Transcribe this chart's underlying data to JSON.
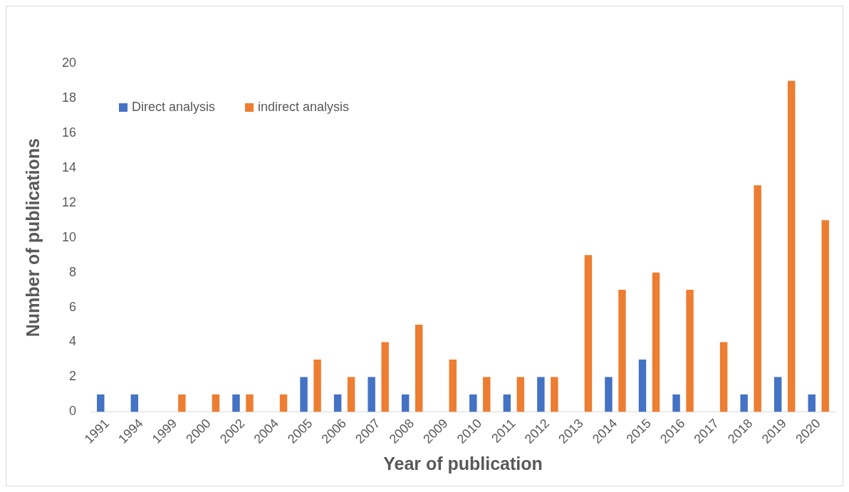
{
  "chart_data": {
    "type": "bar",
    "xlabel": "Year of publication",
    "ylabel": "Number of publications",
    "categories": [
      "1991",
      "1994",
      "1999",
      "2000",
      "2002",
      "2004",
      "2005",
      "2006",
      "2007",
      "2008",
      "2009",
      "2010",
      "2011",
      "2012",
      "2013",
      "2014",
      "2015",
      "2016",
      "2017",
      "2018",
      "2019",
      "2020"
    ],
    "series": [
      {
        "name": "Direct analysis",
        "color": "#4472c4",
        "values": [
          1,
          1,
          0,
          0,
          1,
          0,
          2,
          1,
          2,
          1,
          0,
          1,
          1,
          2,
          0,
          2,
          3,
          1,
          0,
          1,
          2,
          1
        ]
      },
      {
        "name": "indirect analysis",
        "color": "#ed7d31",
        "values": [
          0,
          0,
          1,
          1,
          1,
          1,
          3,
          2,
          4,
          5,
          3,
          2,
          2,
          2,
          9,
          7,
          8,
          7,
          4,
          13,
          19,
          11
        ]
      }
    ],
    "ylim": [
      0,
      20
    ],
    "yticks": [
      0,
      2,
      4,
      6,
      8,
      10,
      12,
      14,
      16,
      18,
      20
    ],
    "grid": false,
    "legend": "top left"
  }
}
